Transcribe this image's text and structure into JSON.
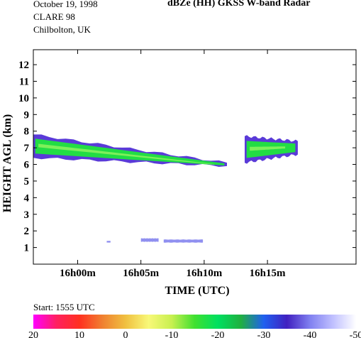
{
  "header": {
    "date": "October 19, 1998",
    "campaign": "CLARE 98",
    "location": "Chilbolton, UK",
    "title": "dBZe (HH)  GKSS  W-band Radar"
  },
  "start_label": "Start: 1555 UTC",
  "chart_data": {
    "type": "heatmap",
    "title": "dBZe (HH)  GKSS  W-band Radar",
    "xlabel": "TIME (UTC)",
    "ylabel": "HEIGHT AGL (km)",
    "x_range_min": [
      -3.5,
      22
    ],
    "ylim": [
      0,
      12.9
    ],
    "x_ticks": [
      {
        "value": 0,
        "label": "16h00m"
      },
      {
        "value": 5,
        "label": "16h05m"
      },
      {
        "value": 10,
        "label": "16h10m"
      },
      {
        "value": 15,
        "label": "16h15m"
      }
    ],
    "y_ticks": [
      1,
      2,
      3,
      4,
      5,
      6,
      7,
      8,
      9,
      10,
      11,
      12
    ],
    "colorbar": {
      "min": -50,
      "max": 20,
      "labels": [
        "20",
        "10",
        "0",
        "-10",
        "-20",
        "-30",
        "-40",
        "-50"
      ],
      "colors": [
        "#ff00ff",
        "#ff2060",
        "#ff3020",
        "#f08030",
        "#f0c040",
        "#f8f878",
        "#c8f050",
        "#40e030",
        "#00e060",
        "#20b040",
        "#2060f0",
        "#4020c0",
        "#8080f0",
        "#c0c0ff",
        "#ffffff"
      ]
    },
    "echo_regions": [
      {
        "name": "main cloud layer",
        "x_start": -3.5,
        "x_end": 11.8,
        "base_start": 6.4,
        "base_end": 5.9,
        "top_start": 7.8,
        "top_end": 6.1,
        "dbz_max": -22
      },
      {
        "name": "trailing cloud layer",
        "x_start": 13.2,
        "x_end": 17.4,
        "base_start": 6.1,
        "base_end": 6.6,
        "top_start": 7.7,
        "top_end": 7.4,
        "dbz_max": -22
      },
      {
        "name": "low echo 1",
        "x_start": 5.0,
        "x_end": 6.4,
        "base_start": 1.35,
        "base_end": 1.35,
        "top_start": 1.55,
        "top_end": 1.55,
        "dbz_max": -38
      },
      {
        "name": "low echo 2",
        "x_start": 6.8,
        "x_end": 9.9,
        "base_start": 1.3,
        "base_end": 1.3,
        "top_start": 1.48,
        "top_end": 1.48,
        "dbz_max": -38
      },
      {
        "name": "low echo 3",
        "x_start": 2.3,
        "x_end": 2.6,
        "base_start": 1.3,
        "base_end": 1.3,
        "top_start": 1.4,
        "top_end": 1.4,
        "dbz_max": -45
      }
    ]
  }
}
